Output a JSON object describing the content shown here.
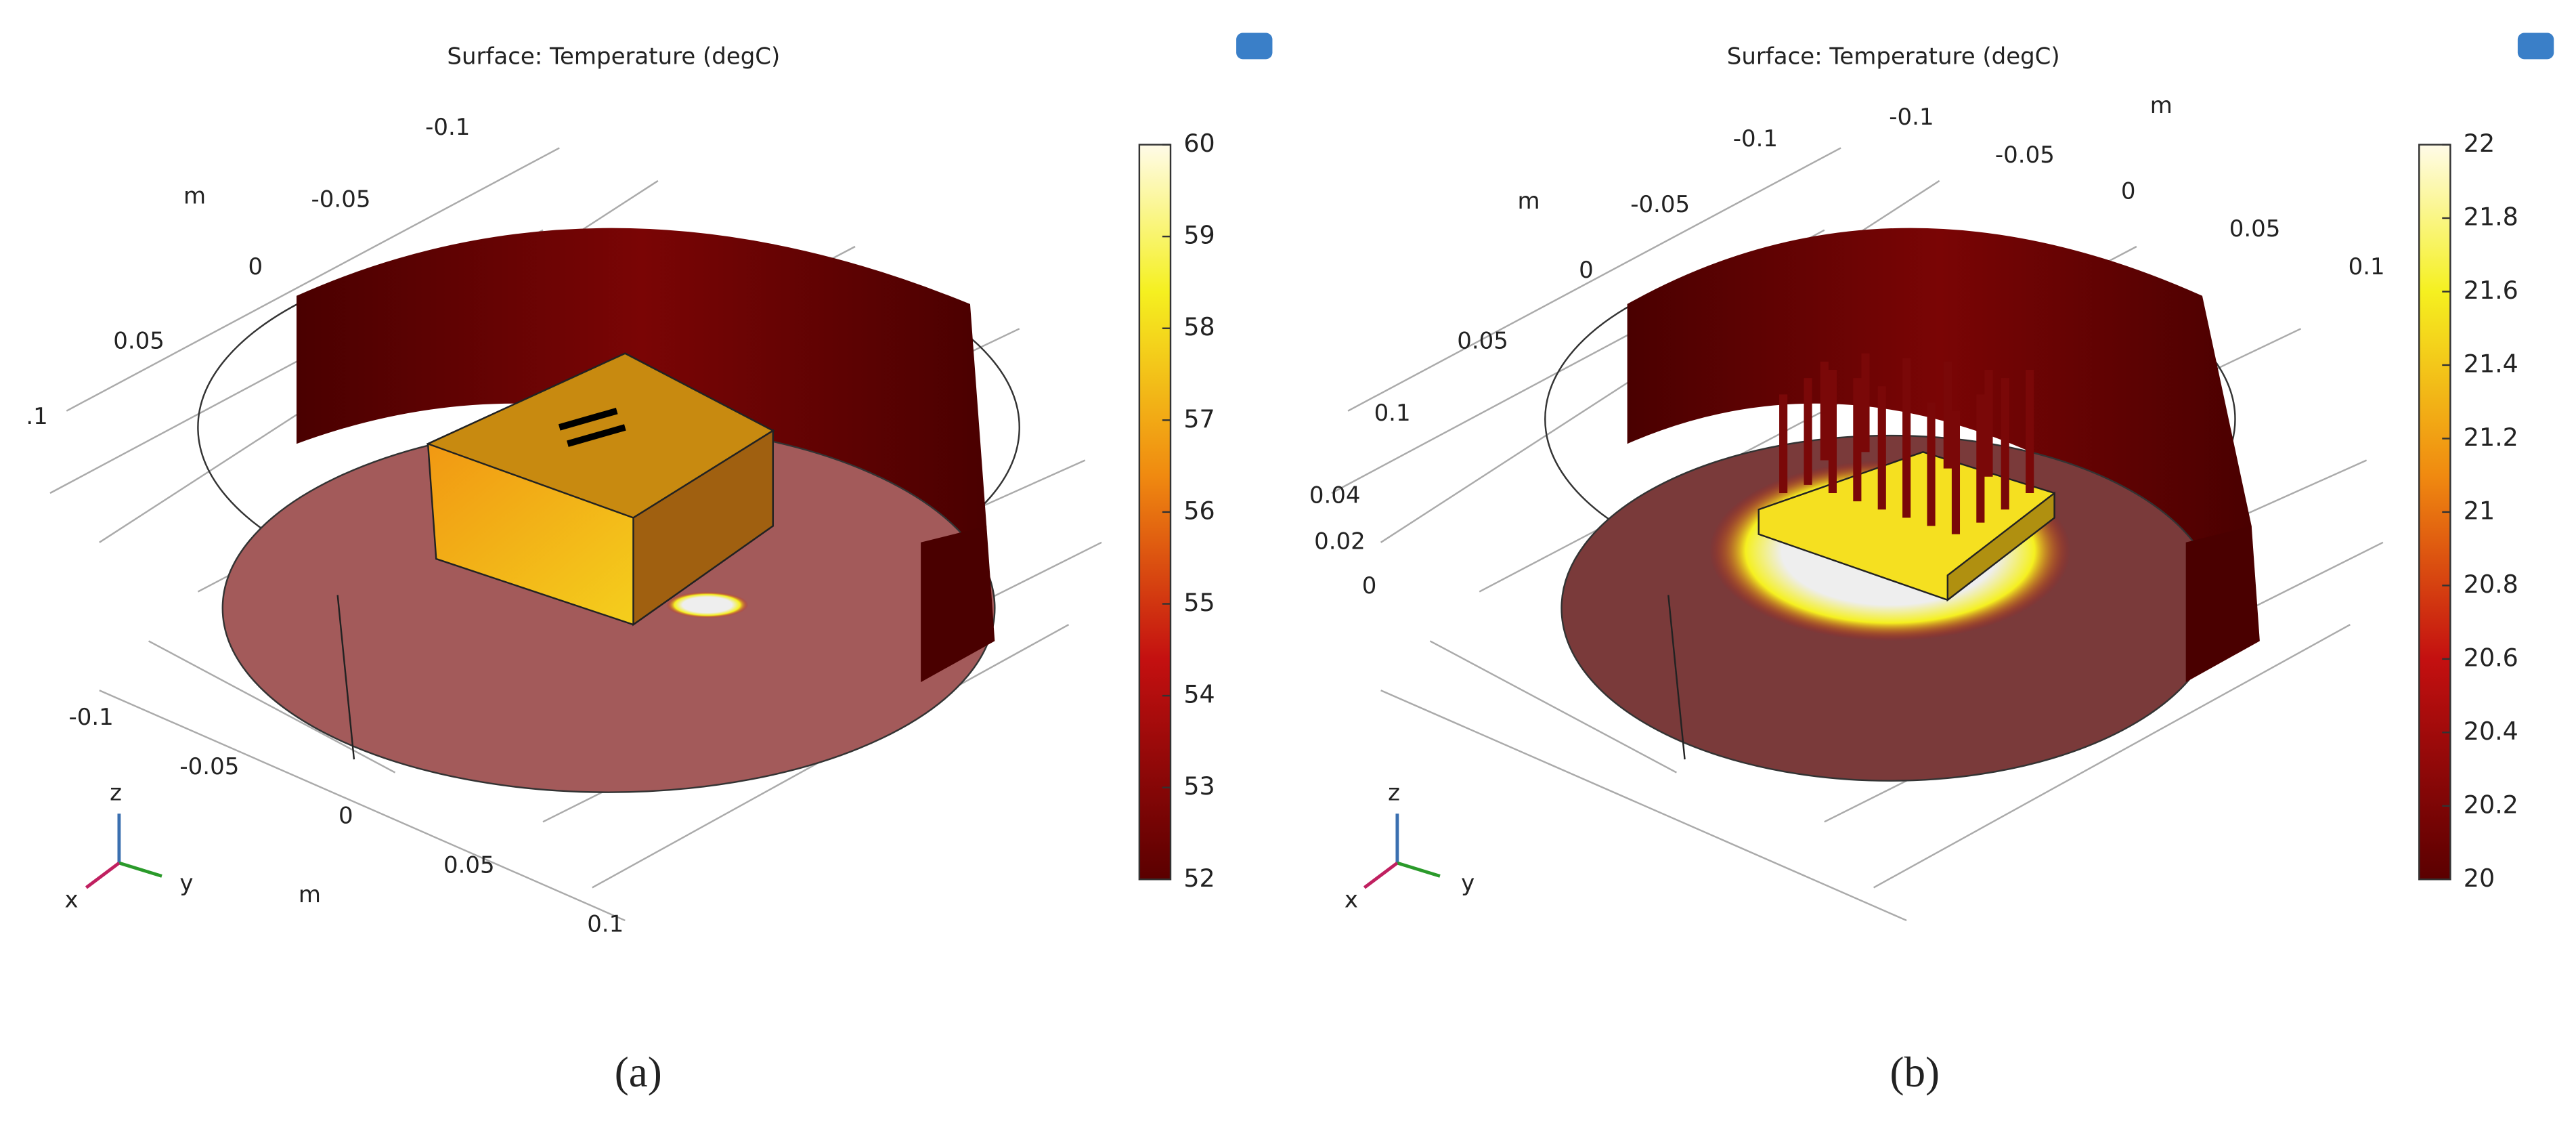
{
  "panels": [
    {
      "title": "Surface: Temperature (degC)",
      "axis_labels": [
        "-0.1",
        "m",
        "-0.05",
        "0",
        "0.05",
        ".1",
        "-0.1",
        "-0.05",
        "0",
        "0.05",
        "m",
        "0.1"
      ],
      "triad": [
        "z",
        "x",
        "y"
      ],
      "colorbar": {
        "range": [
          52,
          60
        ],
        "ticks": [
          52,
          53,
          54,
          55,
          56,
          57,
          58,
          59,
          60
        ]
      },
      "caption": "(a)"
    },
    {
      "title": "Surface: Temperature (degC)",
      "axis_labels": [
        "-0.1",
        "m",
        "-0.1",
        "-0.05",
        "0",
        "0.05",
        "0.1",
        "m",
        "-0.05",
        "0",
        "0.05",
        "0.1",
        "0.04",
        "0.02",
        "0"
      ],
      "triad": [
        "z",
        "x",
        "y"
      ],
      "colorbar": {
        "range": [
          20,
          22
        ],
        "ticks": [
          20,
          20.2,
          20.4,
          20.6,
          20.8,
          21,
          21.2,
          21.4,
          21.6,
          21.8,
          22
        ]
      },
      "caption": "(b)"
    }
  ]
}
